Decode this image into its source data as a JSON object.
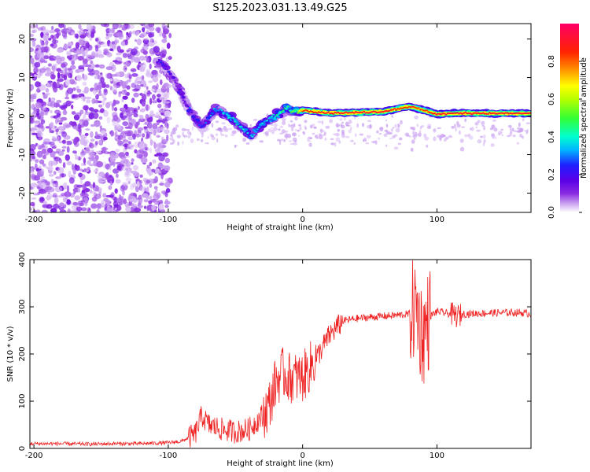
{
  "title": "S125.2023.031.13.49.G25",
  "chart_data": [
    {
      "type": "heatmap",
      "xlabel": "Height of straight line (km)",
      "ylabel": "Frequency (Hz)",
      "xlim": [
        -203,
        170
      ],
      "ylim": [
        -25,
        24
      ],
      "xticks": [
        -200,
        -100,
        0,
        100
      ],
      "yticks": [
        -20,
        -10,
        0,
        10,
        20
      ],
      "colorbar": {
        "label": "Normalized spectral amplitude",
        "range": [
          0,
          1
        ],
        "ticks": [
          0.0,
          0.2,
          0.4,
          0.6,
          0.8
        ],
        "colors": [
          "#ffffff",
          "#c79cf0",
          "#8a2be2",
          "#5b00e6",
          "#1f1fff",
          "#00b4ff",
          "#00ffd0",
          "#33ff33",
          "#b8ff00",
          "#ffff00",
          "#ff9900",
          "#ff2200",
          "#ff0066"
        ]
      },
      "ridge": {
        "x": [
          -105,
          -95,
          -85,
          -75,
          -65,
          -55,
          -45,
          -38,
          -30,
          -20,
          -12,
          -5,
          0,
          20,
          40,
          60,
          80,
          90,
          100,
          120,
          140,
          170
        ],
        "y": [
          14,
          9,
          2,
          -3,
          2,
          0,
          -3,
          -5,
          -2,
          0,
          2,
          1,
          1.5,
          0.8,
          0.9,
          1.2,
          2.5,
          1.5,
          0.5,
          0.8,
          0.7,
          0.7
        ],
        "amplitude": [
          0.3,
          0.25,
          0.3,
          0.35,
          0.4,
          0.45,
          0.45,
          0.4,
          0.45,
          0.5,
          0.55,
          0.6,
          0.9,
          0.95,
          0.95,
          0.95,
          0.9,
          0.9,
          0.95,
          0.95,
          0.95,
          0.95
        ]
      }
    },
    {
      "type": "line",
      "xlabel": "Height of straight line (km)",
      "ylabel": "SNR (10 * v/v)",
      "xlim": [
        -203,
        170
      ],
      "ylim": [
        0,
        400
      ],
      "xticks": [
        -200,
        -100,
        0,
        100
      ],
      "yticks": [
        0,
        100,
        200,
        300,
        400
      ],
      "color": "#ee2222",
      "series": [
        {
          "x": [
            -200,
            -180,
            -160,
            -140,
            -120,
            -100,
            -90,
            -80,
            -75,
            -70,
            -60,
            -50,
            -40,
            -30,
            -25,
            -20,
            -15,
            -10,
            0,
            10,
            20,
            30,
            40,
            50,
            60,
            70,
            80,
            85,
            88,
            90,
            92,
            95,
            100,
            110,
            115,
            120,
            140,
            160,
            170
          ],
          "y": [
            10,
            10,
            9,
            10,
            10,
            12,
            15,
            30,
            70,
            50,
            40,
            35,
            40,
            70,
            90,
            140,
            160,
            150,
            150,
            190,
            240,
            270,
            275,
            278,
            280,
            282,
            285,
            300,
            250,
            240,
            260,
            280,
            290,
            285,
            280,
            285,
            287,
            288,
            285
          ]
        }
      ]
    }
  ]
}
